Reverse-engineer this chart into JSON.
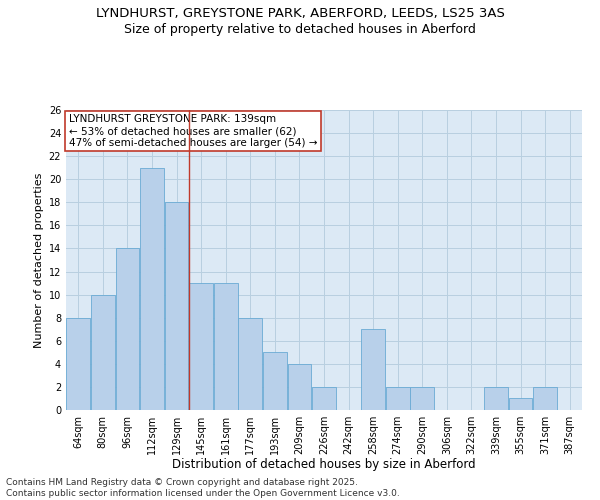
{
  "title_line1": "LYNDHURST, GREYSTONE PARK, ABERFORD, LEEDS, LS25 3AS",
  "title_line2": "Size of property relative to detached houses in Aberford",
  "xlabel": "Distribution of detached houses by size in Aberford",
  "ylabel": "Number of detached properties",
  "categories": [
    "64sqm",
    "80sqm",
    "96sqm",
    "112sqm",
    "129sqm",
    "145sqm",
    "161sqm",
    "177sqm",
    "193sqm",
    "209sqm",
    "226sqm",
    "242sqm",
    "258sqm",
    "274sqm",
    "290sqm",
    "306sqm",
    "322sqm",
    "339sqm",
    "355sqm",
    "371sqm",
    "387sqm"
  ],
  "values": [
    8,
    10,
    14,
    21,
    18,
    11,
    11,
    8,
    5,
    4,
    2,
    0,
    7,
    2,
    2,
    0,
    0,
    2,
    1,
    2,
    0
  ],
  "bar_color": "#b8d0ea",
  "bar_edge_color": "#6aaad4",
  "vline_x": 4.5,
  "vline_color": "#c0392b",
  "annotation_text": "LYNDHURST GREYSTONE PARK: 139sqm\n← 53% of detached houses are smaller (62)\n47% of semi-detached houses are larger (54) →",
  "annotation_box_color": "#c0392b",
  "ylim": [
    0,
    26
  ],
  "yticks": [
    0,
    2,
    4,
    6,
    8,
    10,
    12,
    14,
    16,
    18,
    20,
    22,
    24,
    26
  ],
  "grid_color": "#b8cfe0",
  "background_color": "#dce9f5",
  "footer_line1": "Contains HM Land Registry data © Crown copyright and database right 2025.",
  "footer_line2": "Contains public sector information licensed under the Open Government Licence v3.0.",
  "title_fontsize": 9.5,
  "subtitle_fontsize": 9.0,
  "xlabel_fontsize": 8.5,
  "ylabel_fontsize": 8.0,
  "tick_fontsize": 7.0,
  "annotation_fontsize": 7.5,
  "footer_fontsize": 6.5
}
